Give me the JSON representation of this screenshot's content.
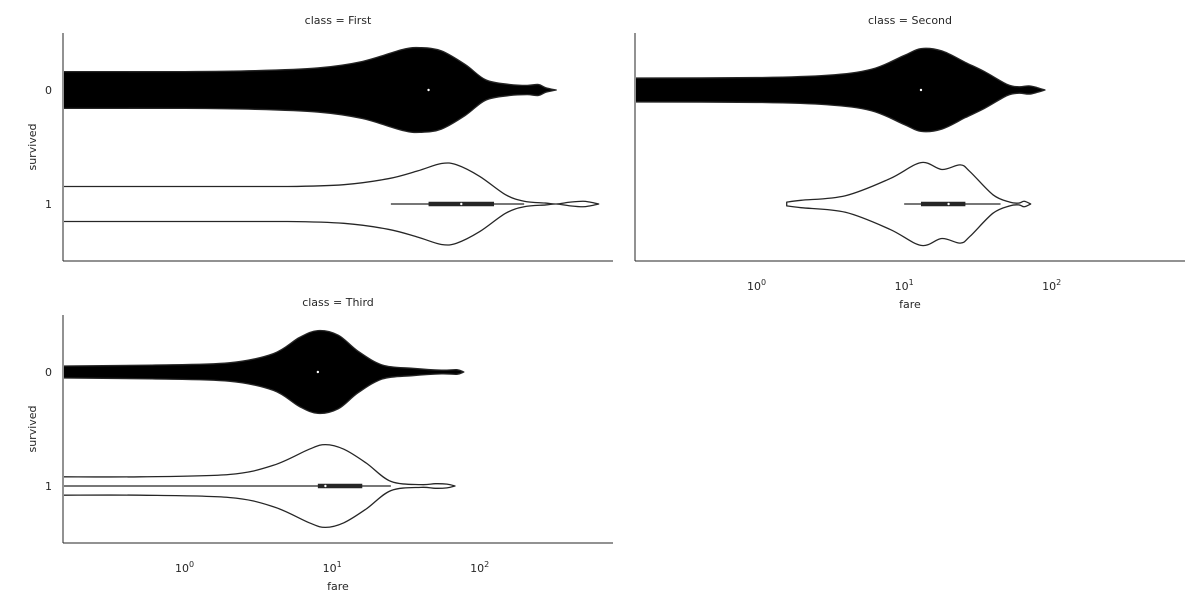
{
  "chart_data": {
    "type": "violin",
    "x_scale": "log",
    "xlim": [
      0.15,
      800
    ],
    "xlabel": "fare",
    "ylabel": "survived",
    "categories": [
      "0",
      "1"
    ],
    "xtick_values": [
      1,
      10,
      100
    ],
    "xtick_bases": [
      "10",
      "10",
      "10"
    ],
    "xtick_exponents": [
      "0",
      "1",
      "2"
    ],
    "grid": false,
    "violin_colors": {
      "0": "#000000",
      "1": "#ffffff"
    },
    "panels": [
      {
        "title": "class = First",
        "violins": [
          {
            "category": "0",
            "profile": [
              [
                0.15,
                0.4
              ],
              [
                1,
                0.4
              ],
              [
                3,
                0.42
              ],
              [
                8,
                0.48
              ],
              [
                16,
                0.62
              ],
              [
                30,
                0.88
              ],
              [
                40,
                0.92
              ],
              [
                55,
                0.85
              ],
              [
                80,
                0.55
              ],
              [
                110,
                0.22
              ],
              [
                160,
                0.12
              ],
              [
                210,
                0.1
              ],
              [
                250,
                0.12
              ],
              [
                280,
                0.05
              ],
              [
                330,
                0.0
              ]
            ],
            "median": 45
          },
          {
            "category": "1",
            "profile": [
              [
                0.15,
                0.38
              ],
              [
                1,
                0.38
              ],
              [
                5,
                0.38
              ],
              [
                12,
                0.42
              ],
              [
                24,
                0.55
              ],
              [
                38,
                0.72
              ],
              [
                55,
                0.88
              ],
              [
                70,
                0.85
              ],
              [
                100,
                0.6
              ],
              [
                150,
                0.2
              ],
              [
                200,
                0.06
              ],
              [
                280,
                0.02
              ],
              [
                330,
                0.0
              ],
              [
                410,
                0.04
              ],
              [
                500,
                0.06
              ],
              [
                560,
                0.04
              ],
              [
                640,
                0.0
              ]
            ],
            "median": 75,
            "quartiles": [
              45,
              125
            ],
            "whiskers": [
              25,
              200
            ]
          }
        ]
      },
      {
        "title": "class = Second",
        "violins": [
          {
            "category": "0",
            "profile": [
              [
                0.15,
                0.26
              ],
              [
                1,
                0.27
              ],
              [
                3,
                0.32
              ],
              [
                6,
                0.45
              ],
              [
                10,
                0.75
              ],
              [
                13,
                0.9
              ],
              [
                18,
                0.85
              ],
              [
                26,
                0.6
              ],
              [
                35,
                0.4
              ],
              [
                50,
                0.12
              ],
              [
                60,
                0.07
              ],
              [
                70,
                0.09
              ],
              [
                80,
                0.05
              ],
              [
                90,
                0.0
              ]
            ],
            "median": 13
          },
          {
            "category": "1",
            "profile": [
              [
                1.6,
                0.04
              ],
              [
                2,
                0.08
              ],
              [
                4,
                0.18
              ],
              [
                8,
                0.55
              ],
              [
                13,
                0.9
              ],
              [
                18,
                0.75
              ],
              [
                24,
                0.85
              ],
              [
                28,
                0.7
              ],
              [
                40,
                0.2
              ],
              [
                52,
                0.04
              ],
              [
                60,
                0.02
              ],
              [
                65,
                0.06
              ],
              [
                72,
                0.0
              ]
            ],
            "median": 20,
            "quartiles": [
              13,
              26
            ],
            "whiskers": [
              10,
              45
            ]
          }
        ]
      },
      {
        "title": "class = Third",
        "violins": [
          {
            "category": "0",
            "profile": [
              [
                0.15,
                0.13
              ],
              [
                0.6,
                0.15
              ],
              [
                2,
                0.2
              ],
              [
                4,
                0.4
              ],
              [
                6,
                0.75
              ],
              [
                8,
                0.9
              ],
              [
                11,
                0.8
              ],
              [
                15,
                0.45
              ],
              [
                22,
                0.15
              ],
              [
                35,
                0.08
              ],
              [
                55,
                0.04
              ],
              [
                70,
                0.05
              ],
              [
                78,
                0.0
              ]
            ],
            "median": 8
          },
          {
            "category": "1",
            "profile": [
              [
                0.15,
                0.2
              ],
              [
                0.5,
                0.2
              ],
              [
                2,
                0.25
              ],
              [
                4,
                0.45
              ],
              [
                7,
                0.8
              ],
              [
                9,
                0.9
              ],
              [
                12,
                0.8
              ],
              [
                17,
                0.5
              ],
              [
                25,
                0.1
              ],
              [
                40,
                0.03
              ],
              [
                50,
                0.05
              ],
              [
                60,
                0.04
              ],
              [
                68,
                0.0
              ]
            ],
            "median": 9,
            "quartiles": [
              8,
              16
            ],
            "whiskers": [
              0.15,
              25
            ]
          }
        ]
      }
    ]
  }
}
